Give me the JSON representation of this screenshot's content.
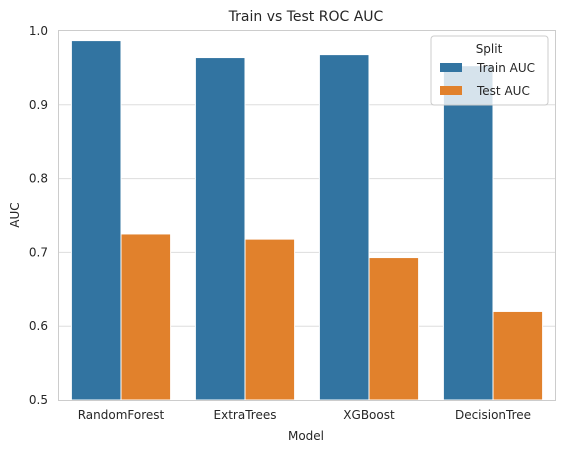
{
  "chart_data": {
    "type": "bar",
    "title": "Train vs Test ROC AUC",
    "xlabel": "Model",
    "ylabel": "AUC",
    "categories": [
      "RandomForest",
      "ExtraTrees",
      "XGBoost",
      "DecisionTree"
    ],
    "series": [
      {
        "name": "Train AUC",
        "values": [
          0.987,
          0.964,
          0.968,
          0.953
        ],
        "color": "#3274a1"
      },
      {
        "name": "Test AUC",
        "values": [
          0.725,
          0.718,
          0.693,
          0.62
        ],
        "color": "#e1812c"
      }
    ],
    "ylim": [
      0.5,
      1.0
    ],
    "yticks": [
      "0.5",
      "0.6",
      "0.7",
      "0.8",
      "0.9",
      "1.0"
    ],
    "grid": true,
    "legend": {
      "title": "Split",
      "placement": "top-right"
    }
  }
}
